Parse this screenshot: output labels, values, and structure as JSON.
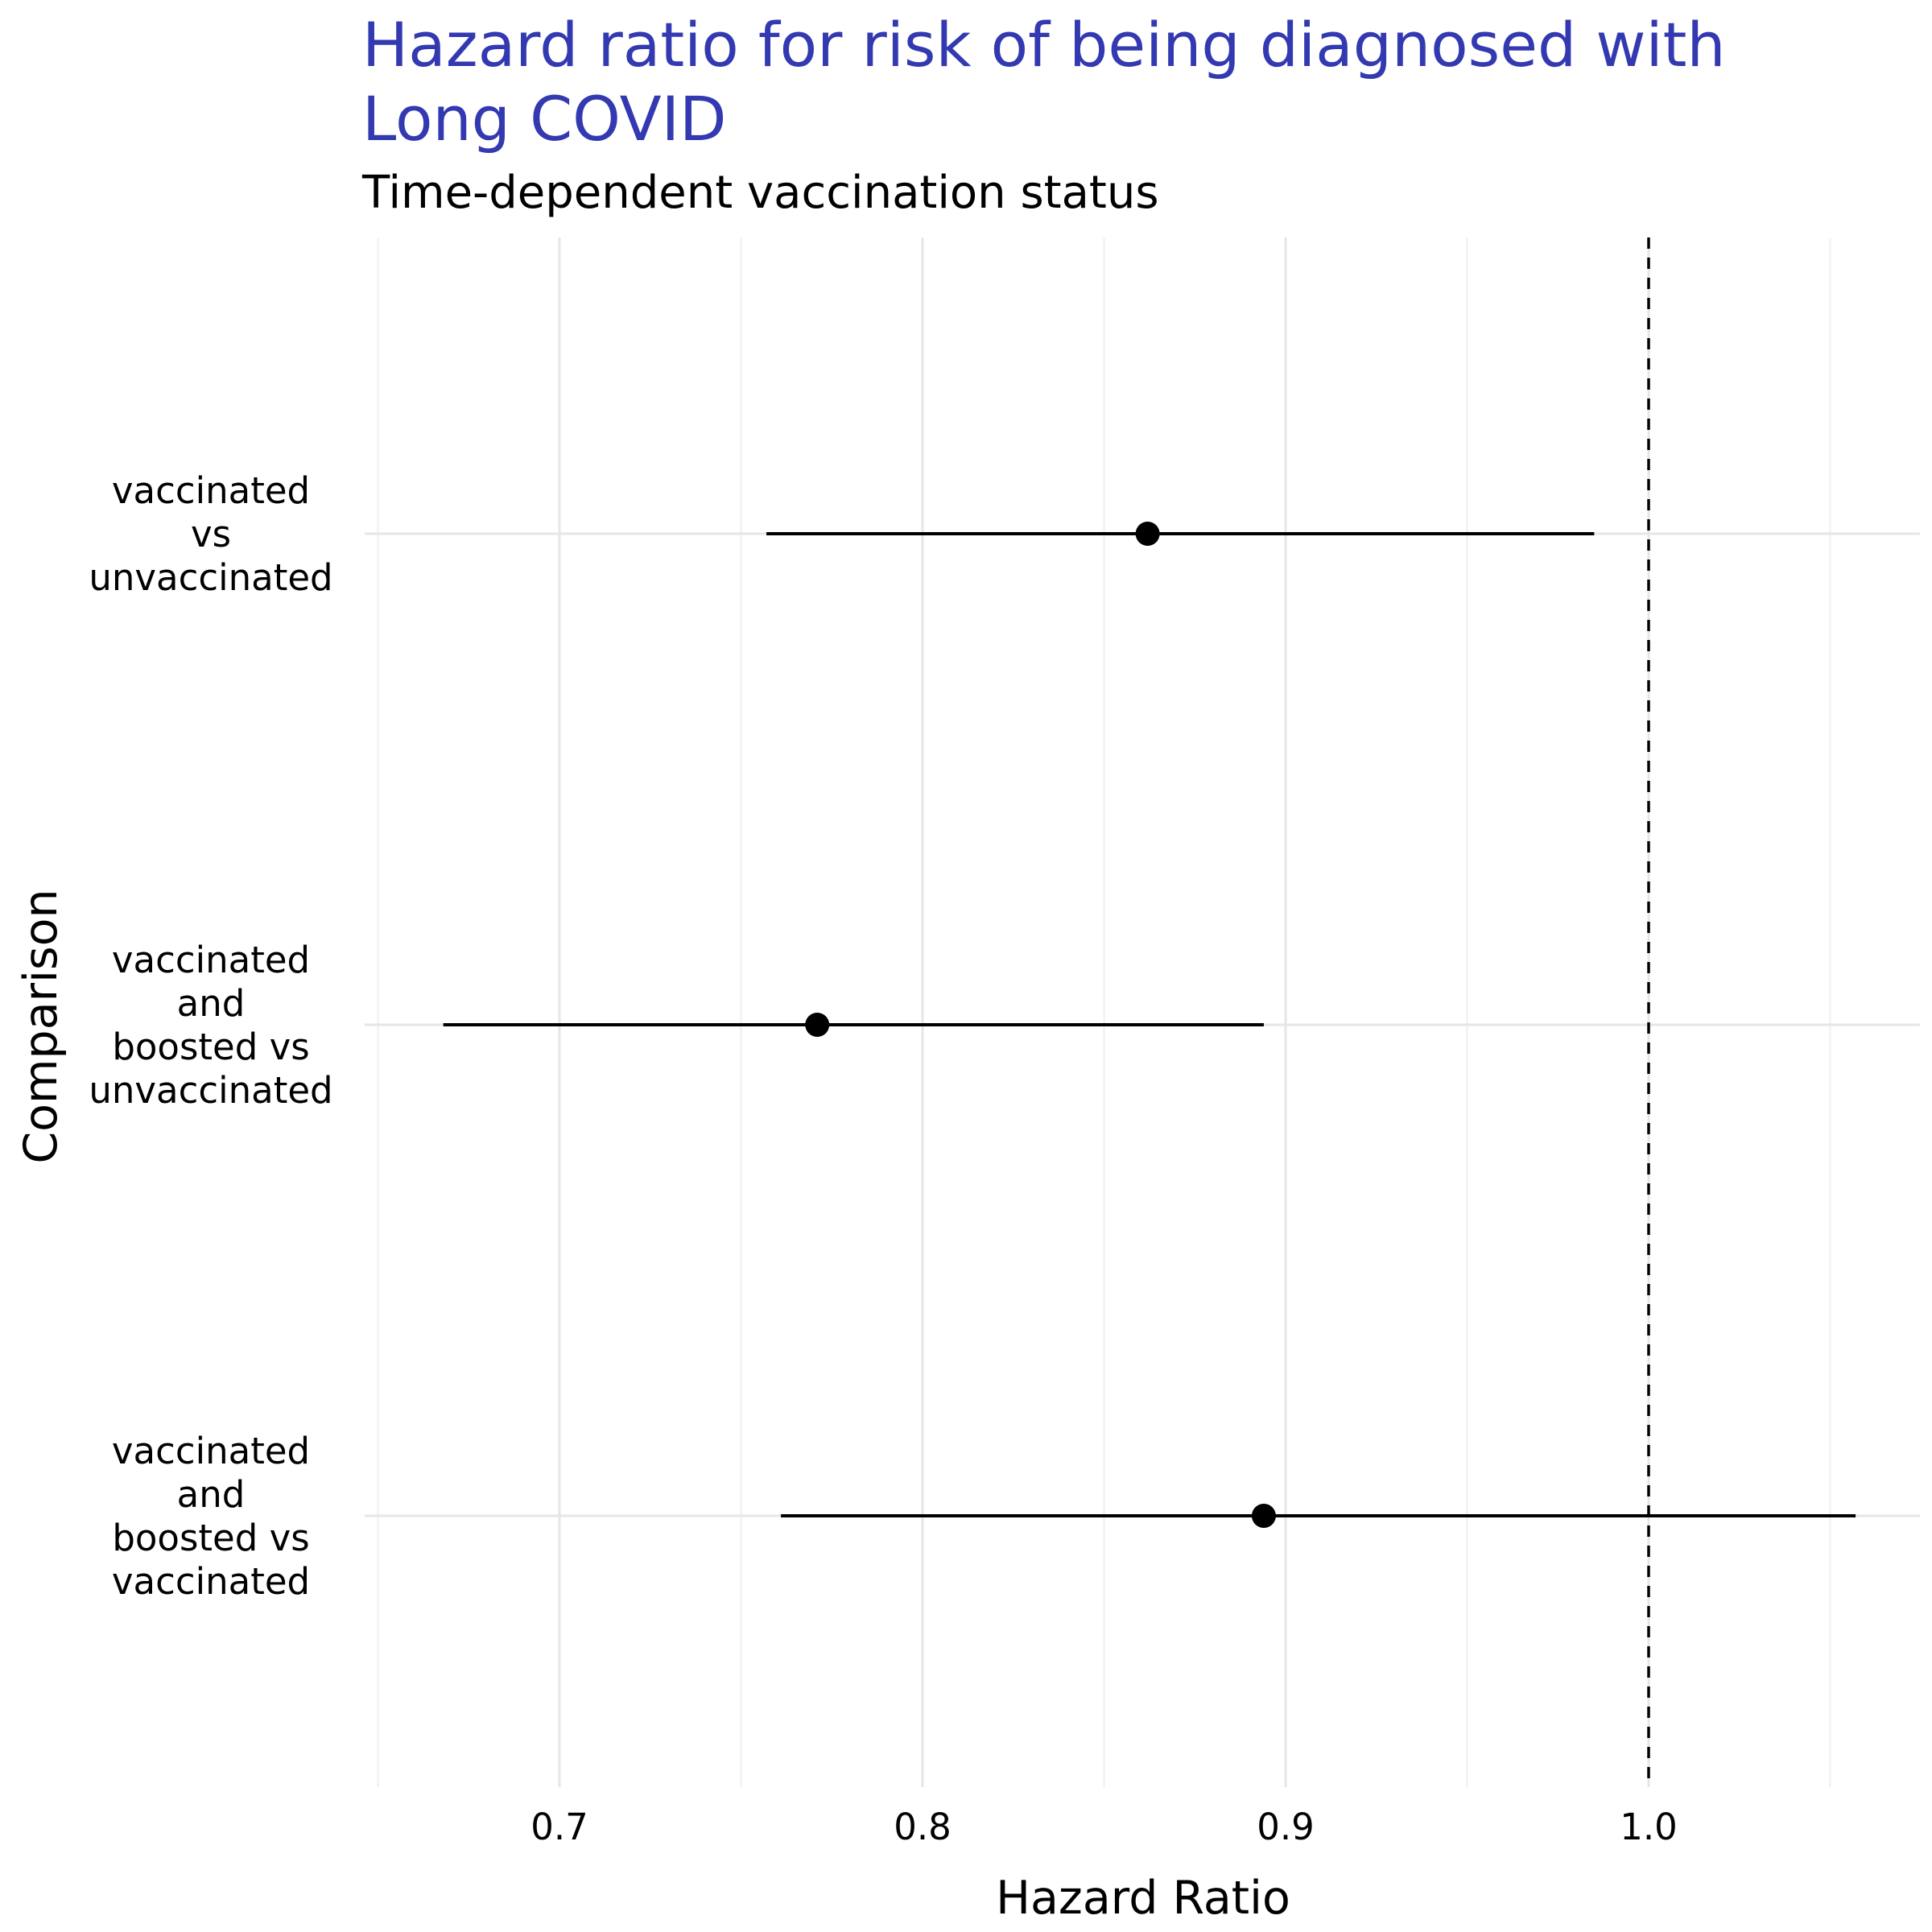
{
  "chart_data": {
    "type": "forest",
    "title": "Hazard ratio for risk of being diagnosed with Long COVID",
    "subtitle": "Time-dependent vaccination status",
    "xlabel": "Hazard Ratio",
    "ylabel": "Comparison",
    "xlim": [
      0.65,
      1.075
    ],
    "x_ticks": [
      "0.7",
      "0.8",
      "0.9",
      "1.0"
    ],
    "x_tick_values": [
      0.7,
      0.8,
      0.9,
      1.0
    ],
    "reference_line": 1.0,
    "grid": true,
    "rows": [
      {
        "label_lines": [
          "vaccinated",
          "vs",
          "unvaccinated"
        ],
        "estimate": 0.862,
        "lower": 0.757,
        "upper": 0.985
      },
      {
        "label_lines": [
          "vaccinated",
          "and",
          "boosted vs",
          "unvaccinated"
        ],
        "estimate": 0.771,
        "lower": 0.668,
        "upper": 0.894
      },
      {
        "label_lines": [
          "vaccinated",
          "and",
          "boosted vs",
          "vaccinated"
        ],
        "estimate": 0.894,
        "lower": 0.761,
        "upper": 1.057
      }
    ]
  }
}
